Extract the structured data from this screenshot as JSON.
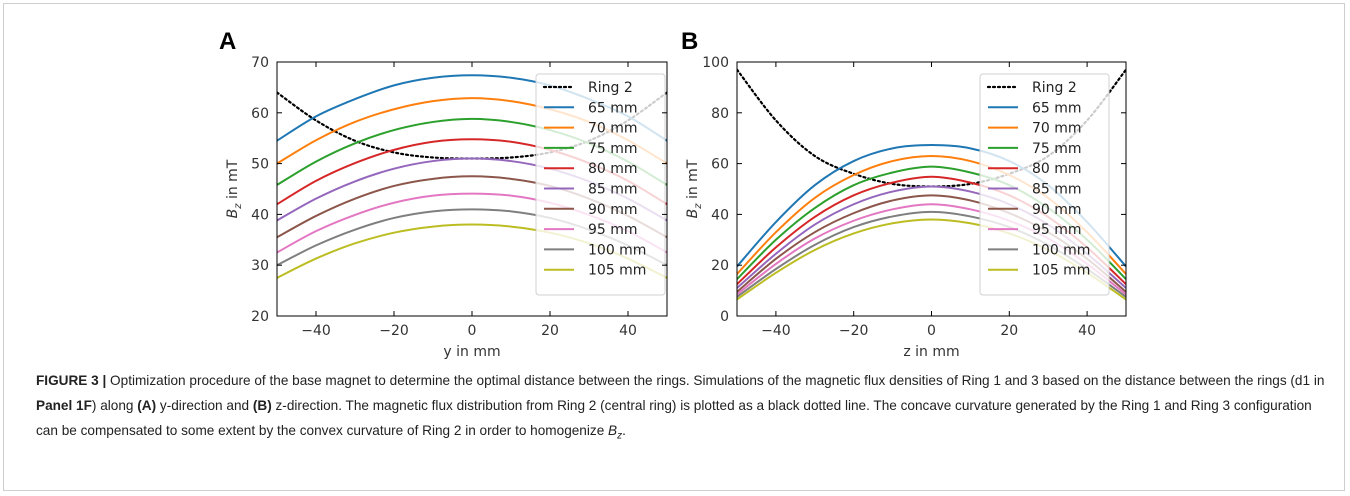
{
  "figure": {
    "panel_labels": [
      "A",
      "B"
    ],
    "caption": {
      "label": "FIGURE 3 |",
      "p1": " Optimization procedure of the base magnet to determine the optimal distance between the rings. Simulations of the magnetic flux densities of Ring 1 and 3 based on the distance between the rings (d1 in ",
      "panel_ref": "Panel 1F",
      "p2": ") along ",
      "a_ref": "(A)",
      "p3": " y-direction and ",
      "b_ref": "(B)",
      "p4": " z-direction. The magnetic flux distribution from Ring 2 (central ring) is plotted as a black dotted line. The concave curvature generated by the Ring 1 and Ring 3 configuration can be compensated to some extent by the convex curvature of Ring 2 in order to homogenize ",
      "bz_main": "B",
      "bz_sub": "z",
      "end": "."
    }
  },
  "colors": {
    "Ring 2": "#000000",
    "65 mm": "#1f77b4",
    "70 mm": "#ff7f0e",
    "75 mm": "#2ca02c",
    "80 mm": "#d62728",
    "85 mm": "#9467bd",
    "90 mm": "#8c564b",
    "95 mm": "#e377c2",
    "100 mm": "#7f7f7f",
    "105 mm": "#bcbd22"
  },
  "chart_data": [
    {
      "type": "line",
      "panel": "A",
      "xlabel": "y in mm",
      "ylabel_main": "B",
      "ylabel_sub": "z",
      "ylabel_rest": " in mT",
      "xlim": [
        -50,
        50
      ],
      "ylim": [
        20,
        70
      ],
      "xticks": [
        -40,
        -20,
        0,
        20,
        40
      ],
      "yticks": [
        20,
        30,
        40,
        50,
        60,
        70
      ],
      "xtick_labels": [
        "−40",
        "−20",
        "0",
        "20",
        "40"
      ],
      "ytick_labels": [
        "20",
        "30",
        "40",
        "50",
        "60",
        "70"
      ],
      "grid": false,
      "legend_position": "upper right",
      "x": [
        -50,
        -40,
        -30,
        -20,
        -10,
        0,
        10,
        20,
        30,
        40,
        50
      ],
      "series": [
        {
          "name": "Ring 2",
          "style": "dotted",
          "values": [
            64,
            58.5,
            54.5,
            52.2,
            51.2,
            51,
            51.2,
            52.2,
            54.5,
            58.5,
            64
          ]
        },
        {
          "name": "65 mm",
          "style": "solid",
          "values": [
            54.5,
            59.3,
            62.7,
            65.4,
            66.9,
            67.4,
            66.9,
            65.4,
            62.7,
            59.3,
            54.5
          ]
        },
        {
          "name": "70 mm",
          "style": "solid",
          "values": [
            50,
            54.6,
            58.2,
            60.7,
            62.3,
            62.9,
            62.3,
            60.7,
            58.2,
            54.6,
            50
          ]
        },
        {
          "name": "75 mm",
          "style": "solid",
          "values": [
            45.8,
            50.4,
            54,
            56.6,
            58.2,
            58.8,
            58.2,
            56.6,
            54,
            50.4,
            45.8
          ]
        },
        {
          "name": "80 mm",
          "style": "solid",
          "values": [
            42,
            46.6,
            50.1,
            52.7,
            54.3,
            54.8,
            54.3,
            52.7,
            50.1,
            46.6,
            42
          ]
        },
        {
          "name": "85 mm",
          "style": "solid",
          "values": [
            38.8,
            43.1,
            46.5,
            49,
            50.5,
            51,
            50.5,
            49,
            46.5,
            43.1,
            38.8
          ]
        },
        {
          "name": "90 mm",
          "style": "solid",
          "values": [
            35.5,
            39.7,
            43.1,
            45.6,
            47,
            47.5,
            47,
            45.6,
            43.1,
            39.7,
            35.5
          ]
        },
        {
          "name": "95 mm",
          "style": "solid",
          "values": [
            32.5,
            36.7,
            39.9,
            42.3,
            43.7,
            44.1,
            43.7,
            42.3,
            39.9,
            36.7,
            32.5
          ]
        },
        {
          "name": "100 mm",
          "style": "solid",
          "values": [
            30,
            33.9,
            37,
            39.3,
            40.6,
            41,
            40.6,
            39.3,
            37,
            33.9,
            30
          ]
        },
        {
          "name": "105 mm",
          "style": "solid",
          "values": [
            27.5,
            31.3,
            34.3,
            36.4,
            37.6,
            38,
            37.6,
            36.4,
            34.3,
            31.3,
            27.5
          ]
        }
      ]
    },
    {
      "type": "line",
      "panel": "B",
      "xlabel": "z in mm",
      "ylabel_main": "B",
      "ylabel_sub": "z",
      "ylabel_rest": " in mT",
      "xlim": [
        -50,
        50
      ],
      "ylim": [
        0,
        100
      ],
      "xticks": [
        -40,
        -20,
        0,
        20,
        40
      ],
      "yticks": [
        0,
        20,
        40,
        60,
        80,
        100
      ],
      "xtick_labels": [
        "−40",
        "−20",
        "0",
        "20",
        "40"
      ],
      "ytick_labels": [
        "0",
        "20",
        "40",
        "60",
        "80",
        "100"
      ],
      "grid": false,
      "legend_position": "upper right",
      "x": [
        -50,
        -40,
        -30,
        -20,
        -10,
        0,
        10,
        20,
        30,
        40,
        50
      ],
      "series": [
        {
          "name": "Ring 2",
          "style": "dotted",
          "values": [
            97,
            77,
            63,
            56,
            52,
            51,
            52,
            56,
            63,
            77,
            97
          ]
        },
        {
          "name": "65 mm",
          "style": "solid",
          "values": [
            19.5,
            37,
            51.5,
            61,
            66,
            67.3,
            66,
            61,
            51.5,
            37,
            19.5
          ]
        },
        {
          "name": "70 mm",
          "style": "solid",
          "values": [
            16.5,
            33,
            46.5,
            55.5,
            61,
            63,
            61,
            55.5,
            46.5,
            33,
            16.5
          ]
        },
        {
          "name": "75 mm",
          "style": "solid",
          "values": [
            14.5,
            30,
            42.5,
            51.5,
            56.5,
            58.8,
            56.5,
            51.5,
            42.5,
            30,
            14.5
          ]
        },
        {
          "name": "80 mm",
          "style": "solid",
          "values": [
            12.5,
            27,
            39,
            47.5,
            52.5,
            54.8,
            52.5,
            47.5,
            39,
            27,
            12.5
          ]
        },
        {
          "name": "85 mm",
          "style": "solid",
          "values": [
            11,
            24.5,
            36,
            44,
            49,
            51,
            49,
            44,
            36,
            24.5,
            11
          ]
        },
        {
          "name": "90 mm",
          "style": "solid",
          "values": [
            9.5,
            22.5,
            33,
            40.5,
            45.5,
            47.5,
            45.5,
            40.5,
            33,
            22.5,
            9.5
          ]
        },
        {
          "name": "95 mm",
          "style": "solid",
          "values": [
            8.5,
            20.5,
            30.5,
            37.5,
            42,
            44,
            42,
            37.5,
            30.5,
            20.5,
            8.5
          ]
        },
        {
          "name": "100 mm",
          "style": "solid",
          "values": [
            7.5,
            18.5,
            28,
            35,
            39.2,
            41,
            39.2,
            35,
            28,
            18.5,
            7.5
          ]
        },
        {
          "name": "105 mm",
          "style": "solid",
          "values": [
            6.5,
            17,
            26,
            32.5,
            36.5,
            38,
            36.5,
            32.5,
            26,
            17,
            6.5
          ]
        }
      ]
    }
  ]
}
